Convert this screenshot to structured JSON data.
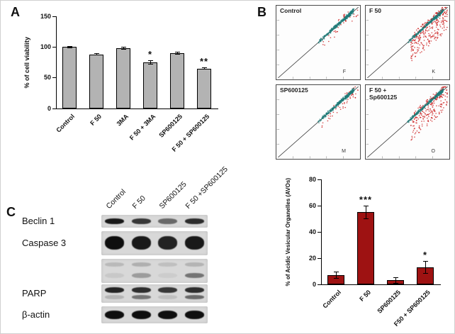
{
  "labels": {
    "a": "A",
    "b": "B",
    "c": "C"
  },
  "chart_data": [
    {
      "id": "viability",
      "type": "bar",
      "title": "",
      "categories": [
        "Control",
        "F 50",
        "3MA",
        "F 50 + 3MA",
        "SP600125",
        "F 50 + SP600125"
      ],
      "values": [
        100,
        88,
        98,
        75,
        90,
        65
      ],
      "errors": [
        2,
        2,
        2,
        3,
        2,
        2
      ],
      "significance": [
        "",
        "",
        "",
        "*",
        "",
        "**"
      ],
      "ylabel": "% of cell viability",
      "xlabel": "",
      "ylim": [
        0,
        150
      ],
      "yticks": [
        0,
        50,
        100,
        150
      ],
      "grid": false,
      "bar_color": "#b3b3b3",
      "bar_border": "#000000"
    },
    {
      "id": "avos",
      "type": "bar",
      "title": "",
      "categories": [
        "Control",
        "F 50",
        "SP600125",
        "F50 + SP600125"
      ],
      "values": [
        7,
        55,
        3,
        13
      ],
      "errors": [
        2.5,
        5,
        2.5,
        5
      ],
      "significance": [
        "",
        "***",
        "",
        "*"
      ],
      "ylabel": "% of Acidic Vesicular Organelles (AVOs)",
      "xlabel": "",
      "ylim": [
        0,
        80
      ],
      "yticks": [
        0,
        20,
        40,
        60,
        80
      ],
      "grid": false,
      "bar_color": "#9e1212",
      "bar_border": "#000000"
    },
    {
      "id": "flow",
      "type": "scatter",
      "title": "",
      "subplots": [
        {
          "label": "Control",
          "letter": "F",
          "red_points": 35,
          "red_spread": 10
        },
        {
          "label": "F 50",
          "letter": "K",
          "red_points": 260,
          "red_spread": 28
        },
        {
          "label": "SP600125",
          "letter": "M",
          "red_points": 45,
          "red_spread": 10
        },
        {
          "label": "F 50 +\nSp600125",
          "letter": "O",
          "red_points": 220,
          "red_spread": 26
        }
      ],
      "cluster_color": "#1f7a78",
      "outlier_color": "#cc1f1f"
    }
  ],
  "western_blot": {
    "column_labels": [
      "Control",
      "F 50",
      "SP600125",
      "F 50 +SP600125"
    ],
    "rows": [
      {
        "label": "Beclin 1",
        "height": 18,
        "bands": [
          {
            "y": 5,
            "h": 8,
            "levels": [
              0.95,
              0.8,
              0.55,
              0.85
            ]
          }
        ]
      },
      {
        "label": "Caspase 3",
        "height": 34,
        "bands": [
          {
            "y": 7,
            "h": 19,
            "levels": [
              1,
              0.95,
              0.9,
              0.95
            ]
          }
        ]
      },
      {
        "label": "",
        "height": 34,
        "bands": [
          {
            "y": 5,
            "h": 6,
            "levels": [
              0.15,
              0.2,
              0.12,
              0.18
            ]
          },
          {
            "y": 20,
            "h": 7,
            "levels": [
              0.08,
              0.3,
              0.06,
              0.5
            ]
          }
        ]
      },
      {
        "label": "PARP",
        "height": 26,
        "bands": [
          {
            "y": 4,
            "h": 8,
            "levels": [
              0.9,
              0.85,
              0.8,
              0.85
            ]
          },
          {
            "y": 15,
            "h": 6,
            "levels": [
              0.18,
              0.5,
              0.12,
              0.55
            ]
          }
        ]
      },
      {
        "label": "β-actin",
        "height": 24,
        "bands": [
          {
            "y": 6,
            "h": 12,
            "levels": [
              1,
              1,
              1,
              1
            ]
          }
        ]
      }
    ]
  }
}
